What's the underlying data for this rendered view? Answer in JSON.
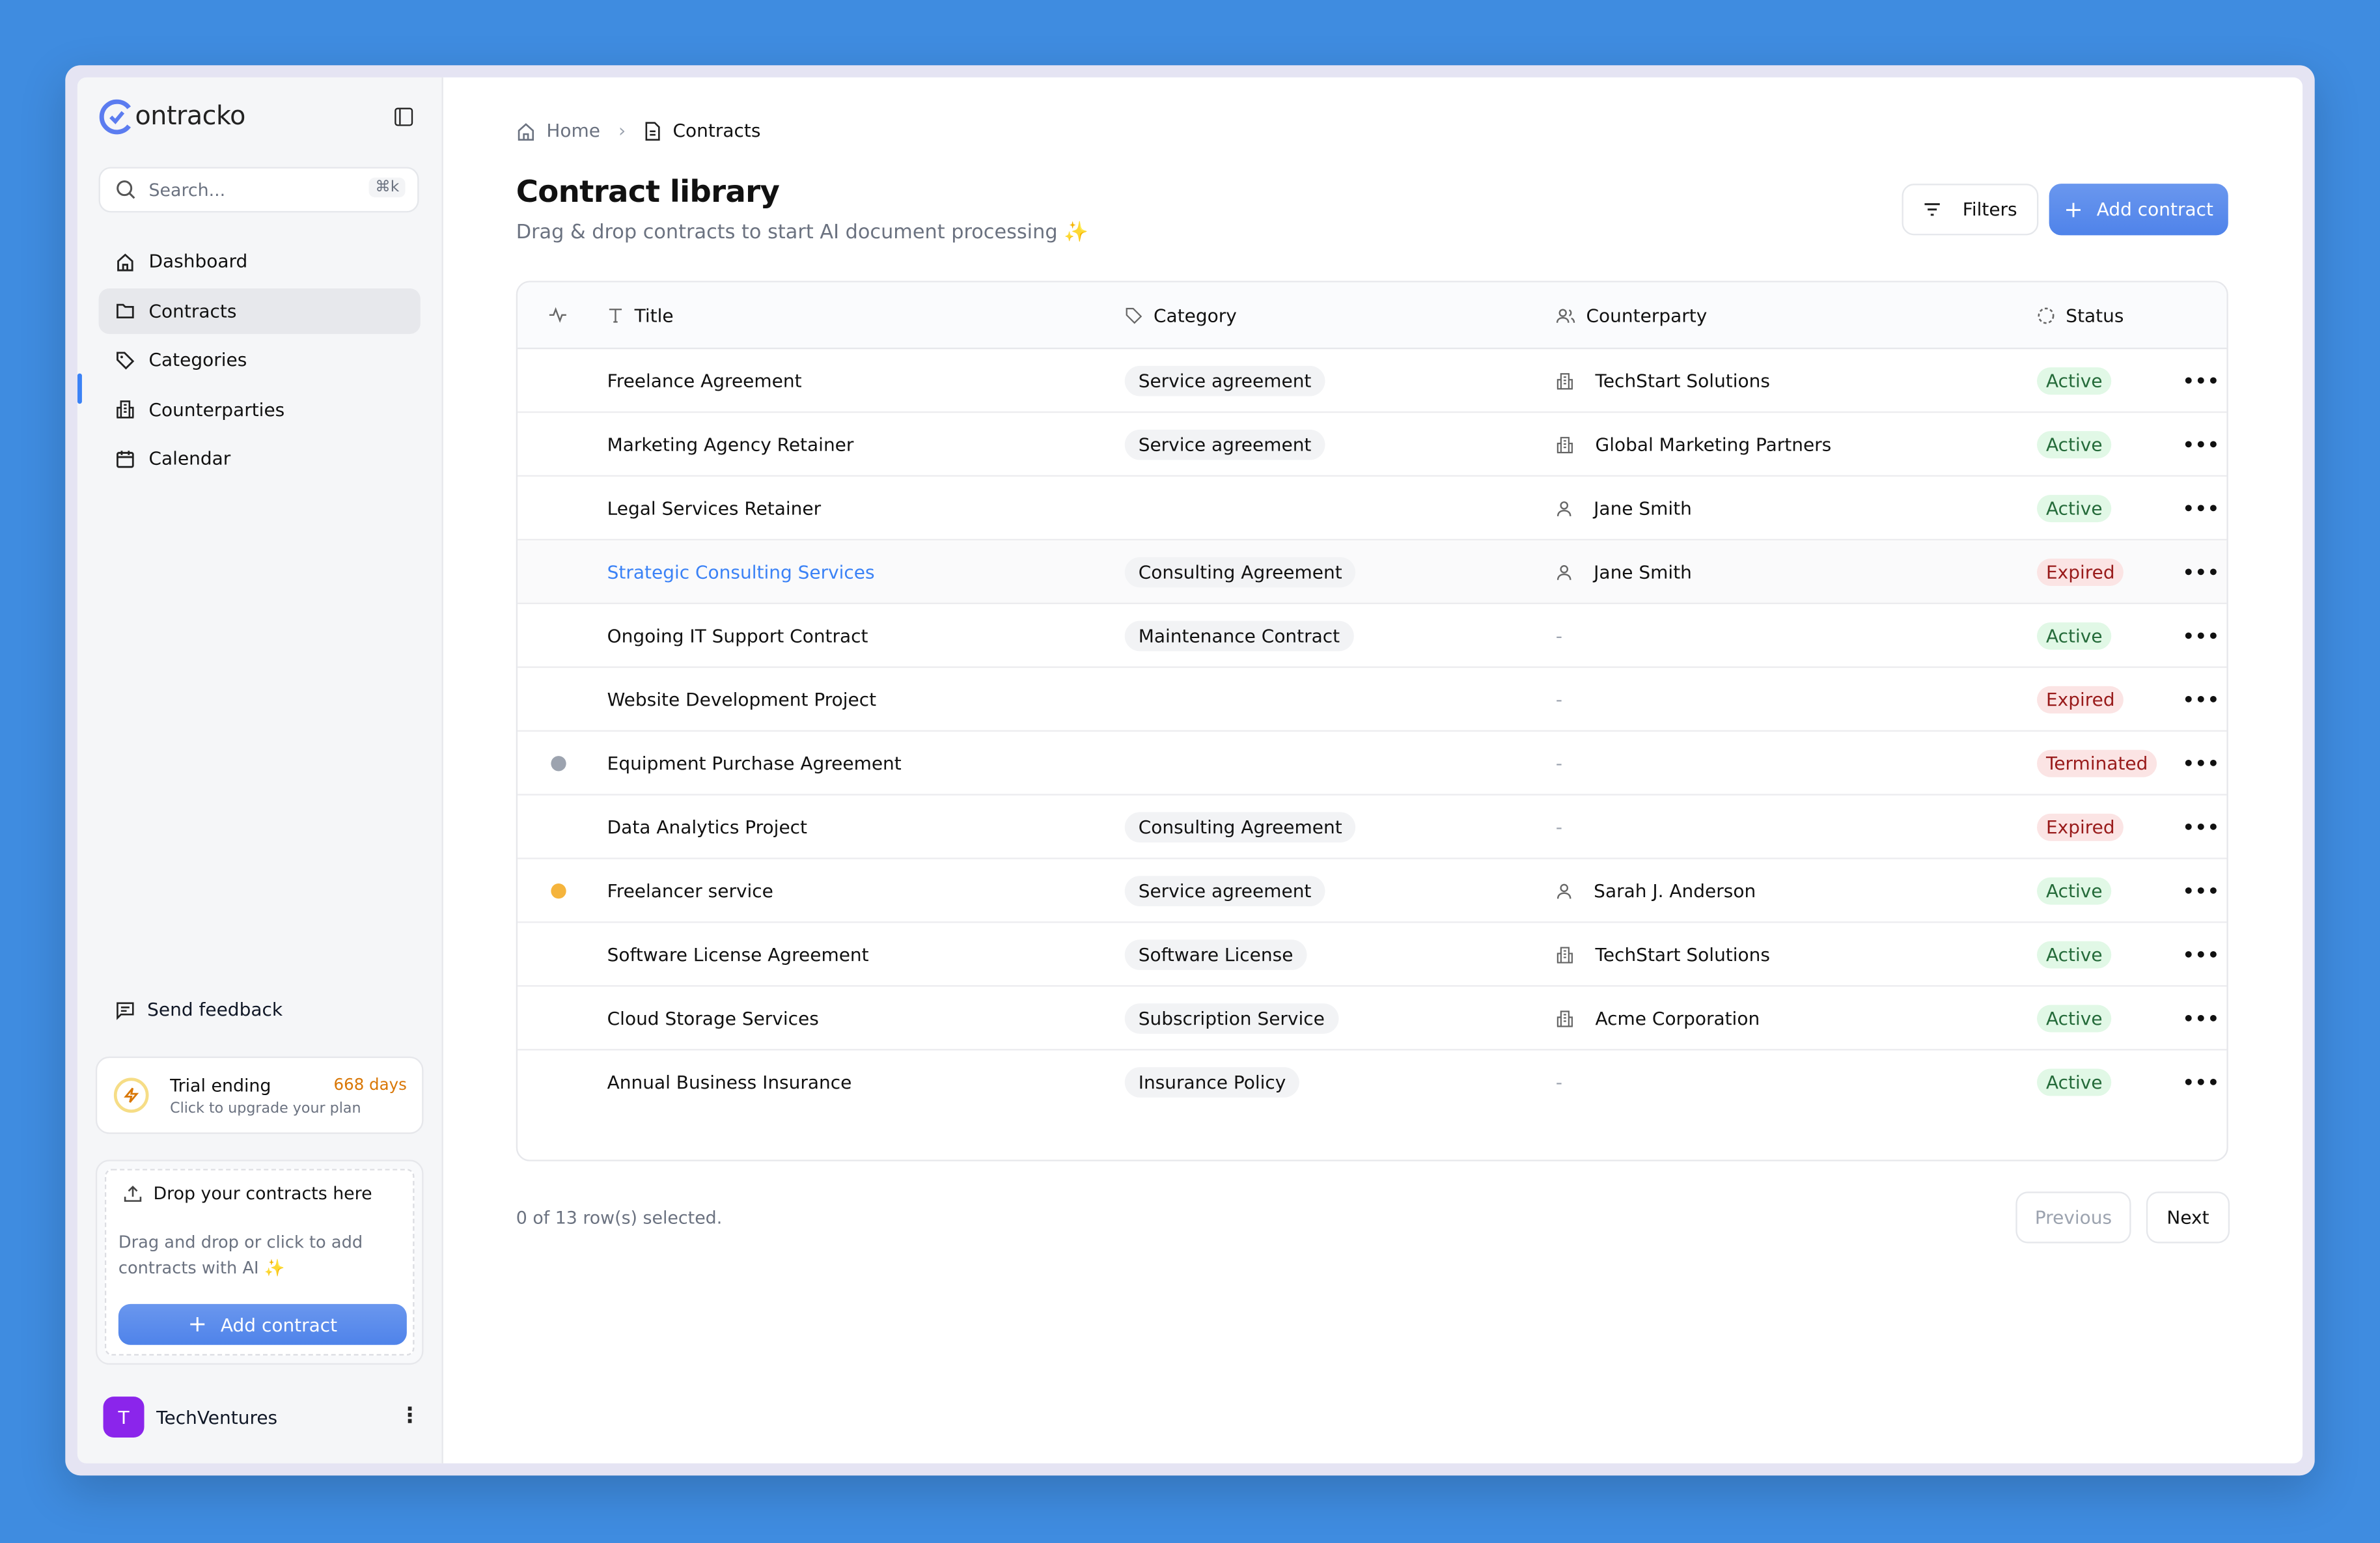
{
  "app": {
    "logo_text": "ontracko",
    "logo_letter": "C"
  },
  "sidebar": {
    "search_placeholder": "Search...",
    "search_shortcut": "⌘k",
    "items": [
      {
        "label": "Dashboard",
        "icon": "home-icon"
      },
      {
        "label": "Contracts",
        "icon": "folder-icon",
        "active": true
      },
      {
        "label": "Categories",
        "icon": "tag-icon"
      },
      {
        "label": "Counterparties",
        "icon": "building-icon"
      },
      {
        "label": "Calendar",
        "icon": "calendar-icon"
      }
    ],
    "feedback_label": "Send feedback",
    "trial": {
      "title": "Trial ending",
      "subtitle": "Click to upgrade your plan",
      "days": "668 days"
    },
    "drop": {
      "title": "Drop your contracts here",
      "text": "Drag and drop or click to add contracts with AI ✨",
      "button": "Add contract"
    },
    "user": {
      "initial": "T",
      "name": "TechVentures"
    }
  },
  "breadcrumb": {
    "home": "Home",
    "current": "Contracts"
  },
  "page": {
    "title": "Contract library",
    "subtitle": "Drag & drop contracts to start AI document processing ✨",
    "filters_label": "Filters",
    "add_label": "Add contract"
  },
  "table": {
    "columns": {
      "title": "Title",
      "category": "Category",
      "counterparty": "Counterparty",
      "status": "Status"
    },
    "rows": [
      {
        "title": "Freelance Agreement",
        "category": "Service agreement",
        "counterparty": "TechStart Solutions",
        "cp_type": "company",
        "status": "Active",
        "dot": ""
      },
      {
        "title": "Marketing Agency Retainer",
        "category": "Service agreement",
        "counterparty": "Global Marketing Partners",
        "cp_type": "company",
        "status": "Active",
        "dot": ""
      },
      {
        "title": "Legal Services Retainer",
        "category": "",
        "counterparty": "Jane Smith",
        "cp_type": "person",
        "status": "Active",
        "dot": ""
      },
      {
        "title": "Strategic Consulting Services",
        "category": "Consulting Agreement",
        "counterparty": "Jane Smith",
        "cp_type": "person",
        "status": "Expired",
        "dot": "",
        "highlighted": true
      },
      {
        "title": "Ongoing IT Support Contract",
        "category": "Maintenance Contract",
        "counterparty": "-",
        "cp_type": "",
        "status": "Active",
        "dot": ""
      },
      {
        "title": "Website Development Project",
        "category": "",
        "counterparty": "-",
        "cp_type": "",
        "status": "Expired",
        "dot": ""
      },
      {
        "title": "Equipment Purchase Agreement",
        "category": "",
        "counterparty": "-",
        "cp_type": "",
        "status": "Terminated",
        "dot": "#9ca3af"
      },
      {
        "title": "Data Analytics Project",
        "category": "Consulting Agreement",
        "counterparty": "-",
        "cp_type": "",
        "status": "Expired",
        "dot": ""
      },
      {
        "title": "Freelancer service",
        "category": "Service agreement",
        "counterparty": "Sarah J. Anderson",
        "cp_type": "person",
        "status": "Active",
        "dot": "#f5b43c"
      },
      {
        "title": "Software License Agreement",
        "category": "Software License",
        "counterparty": "TechStart Solutions",
        "cp_type": "company",
        "status": "Active",
        "dot": ""
      },
      {
        "title": "Cloud Storage Services",
        "category": "Subscription Service",
        "counterparty": "Acme Corporation",
        "cp_type": "company",
        "status": "Active",
        "dot": ""
      },
      {
        "title": "Annual Business Insurance",
        "category": "Insurance Policy",
        "counterparty": "-",
        "cp_type": "",
        "status": "Active",
        "dot": ""
      }
    ]
  },
  "footer": {
    "selected_text": "0 of 13 row(s) selected.",
    "previous": "Previous",
    "next": "Next"
  },
  "colors": {
    "accent": "#4f83ea",
    "background": "#3f8ce0",
    "active_bg": "#e1f8e6",
    "active_fg": "#256b3a",
    "expired_bg": "#fbe4e4",
    "expired_fg": "#991b1b"
  }
}
